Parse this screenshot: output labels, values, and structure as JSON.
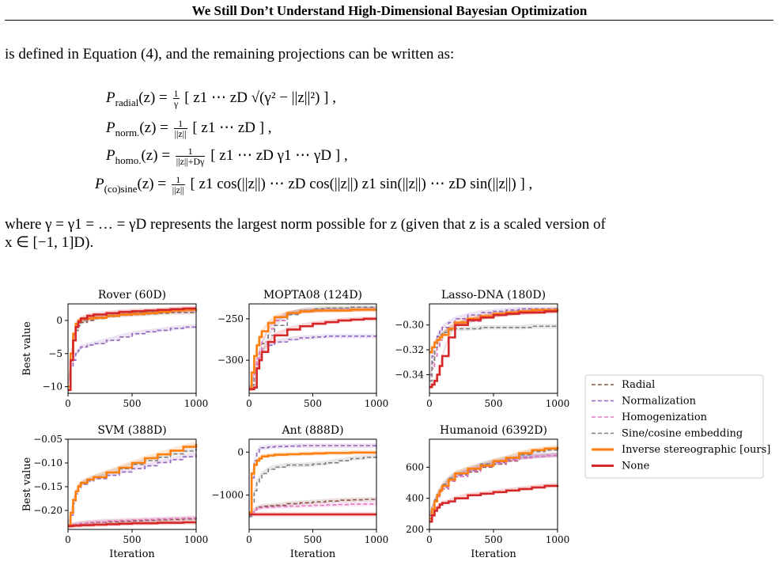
{
  "header": {
    "title": "We Still Don’t Understand High-Dimensional Bayesian Optimization"
  },
  "text": {
    "intro": "is defined in Equation (4), and the remaining projections can be written as:",
    "where_line1": "where γ = γ1 = … = γD represents the largest norm possible for z (given that z is a scaled version of",
    "where_line2": "x ∈ [−1, 1]D)."
  },
  "equations": {
    "radial": {
      "lhs_P": "P",
      "lhs_sub": "radial",
      "lhs_arg": "(z) =",
      "frac_num": "1",
      "frac_den": "γ",
      "body": "[ z1   ⋯   zD   √(γ² − ||z||²) ] ,"
    },
    "norm": {
      "lhs_P": "P",
      "lhs_sub": "norm.",
      "lhs_arg": "(z) =",
      "frac_num": "1",
      "frac_den": "||z||",
      "body": "[ z1   ⋯   zD ] ,"
    },
    "homo": {
      "lhs_P": "P",
      "lhs_sub": "homo.",
      "lhs_arg": "(z) =",
      "frac_num": "1",
      "frac_den": "||z||+Dγ",
      "body": "[ z1   ⋯   zD   γ1   ⋯   γD ] ,"
    },
    "sine": {
      "lhs_P": "P",
      "lhs_sub": "(co)sine",
      "lhs_arg": "(z) =",
      "frac_num": "1",
      "frac_den": "||z||",
      "body": "[ z1 cos(||z||)   ⋯   zD cos(||z||)   z1 sin(||z||)   ⋯   zD sin(||z||) ] ,"
    }
  },
  "legend": {
    "entries": [
      {
        "label": "Radial",
        "color": "#8c564b",
        "dash": true
      },
      {
        "label": "Normalization",
        "color": "#9467bd",
        "dash": true
      },
      {
        "label": "Homogenization",
        "color": "#e377c2",
        "dash": true
      },
      {
        "label": "Sine/cosine embedding",
        "color": "#7f7f7f",
        "dash": true
      },
      {
        "label": "Inverse stereographic [ours]",
        "color": "#ff7f0e",
        "dash": false
      },
      {
        "label": "None",
        "color": "#d62728",
        "dash": false
      }
    ]
  },
  "chart_data": [
    {
      "type": "line",
      "title": "Rover (60D)",
      "ylabel": "Best value",
      "xlabel": "",
      "xlim": [
        0,
        1000
      ],
      "ylim": [
        -11,
        2.5
      ],
      "xticks": [
        0,
        500,
        1000
      ],
      "yticks": [
        0,
        -5,
        -10
      ],
      "x": [
        0,
        20,
        40,
        60,
        80,
        100,
        150,
        200,
        300,
        400,
        500,
        600,
        700,
        800,
        900,
        1000
      ],
      "series": [
        {
          "name": "Radial",
          "values": [
            -10,
            -6,
            -3,
            -1.5,
            -0.8,
            -0.3,
            0,
            0.3,
            0.6,
            0.8,
            0.9,
            1.0,
            1.1,
            1.2,
            1.2,
            1.3
          ]
        },
        {
          "name": "Normalization",
          "values": [
            -10,
            -7,
            -6,
            -5,
            -4.5,
            -4,
            -3.7,
            -3.5,
            -3,
            -2.5,
            -2,
            -1.7,
            -1.5,
            -1.2,
            -1,
            -0.9
          ]
        },
        {
          "name": "Homogenization",
          "values": [
            -10,
            -6,
            -3,
            -1.5,
            -0.5,
            0,
            0.3,
            0.5,
            0.8,
            1.0,
            1.1,
            1.2,
            1.3,
            1.4,
            1.5,
            1.5
          ]
        },
        {
          "name": "Sine/cosine embedding",
          "values": [
            -10,
            -6,
            -3,
            -1.5,
            -0.5,
            0,
            0.3,
            0.5,
            0.8,
            1.0,
            1.2,
            1.3,
            1.4,
            1.5,
            1.6,
            1.6
          ]
        },
        {
          "name": "Inverse stereographic [ours]",
          "values": [
            -10,
            -5,
            -2,
            -0.5,
            0,
            0.2,
            0.3,
            0.4,
            0.7,
            0.9,
            1.0,
            1.1,
            1.3,
            1.5,
            1.6,
            1.7
          ]
        },
        {
          "name": "None",
          "values": [
            -10.5,
            -6,
            -3,
            -1,
            -0.2,
            0.3,
            0.7,
            0.9,
            1.1,
            1.3,
            1.4,
            1.5,
            1.6,
            1.7,
            1.8,
            1.8
          ]
        }
      ]
    },
    {
      "type": "line",
      "title": "MOPTA08 (124D)",
      "ylabel": "",
      "xlabel": "",
      "xlim": [
        0,
        1000
      ],
      "ylim": [
        -340,
        -232
      ],
      "xticks": [
        0,
        500,
        1000
      ],
      "yticks": [
        -250,
        -300
      ],
      "x": [
        0,
        20,
        40,
        60,
        80,
        100,
        150,
        200,
        300,
        400,
        500,
        600,
        700,
        800,
        900,
        1000
      ],
      "series": [
        {
          "name": "Radial",
          "values": [
            -335,
            -330,
            -315,
            -300,
            -290,
            -280,
            -262,
            -252,
            -244,
            -241,
            -240,
            -239,
            -239,
            -239,
            -238,
            -238
          ]
        },
        {
          "name": "Normalization",
          "values": [
            -335,
            -330,
            -315,
            -305,
            -297,
            -290,
            -282,
            -278,
            -275,
            -273,
            -272,
            -271,
            -271,
            -271,
            -271,
            -271
          ]
        },
        {
          "name": "Homogenization",
          "values": [
            -335,
            -330,
            -312,
            -298,
            -288,
            -278,
            -262,
            -252,
            -244,
            -241,
            -240,
            -239,
            -239,
            -239,
            -238,
            -238
          ]
        },
        {
          "name": "Sine/cosine embedding",
          "values": [
            -335,
            -330,
            -320,
            -310,
            -300,
            -290,
            -270,
            -258,
            -245,
            -240,
            -238,
            -237,
            -237,
            -236,
            -236,
            -236
          ]
        },
        {
          "name": "Inverse stereographic [ours]",
          "values": [
            -335,
            -315,
            -295,
            -282,
            -272,
            -265,
            -255,
            -248,
            -243,
            -241,
            -240,
            -240,
            -240,
            -239,
            -239,
            -239
          ]
        },
        {
          "name": "None",
          "values": [
            -335,
            -335,
            -333,
            -310,
            -300,
            -290,
            -278,
            -270,
            -263,
            -259,
            -256,
            -254,
            -252,
            -251,
            -250,
            -250
          ]
        }
      ]
    },
    {
      "type": "line",
      "title": "Lasso-DNA (180D)",
      "ylabel": "",
      "xlabel": "",
      "xlim": [
        0,
        1000
      ],
      "ylim": [
        -0.355,
        -0.283
      ],
      "xticks": [
        0,
        500,
        1000
      ],
      "yticks": [
        -0.3,
        -0.32,
        -0.34
      ],
      "x": [
        0,
        20,
        40,
        60,
        80,
        100,
        150,
        200,
        300,
        400,
        500,
        600,
        700,
        800,
        900,
        1000
      ],
      "series": [
        {
          "name": "Radial",
          "values": [
            -0.345,
            -0.335,
            -0.325,
            -0.318,
            -0.312,
            -0.308,
            -0.303,
            -0.3,
            -0.297,
            -0.294,
            -0.292,
            -0.291,
            -0.29,
            -0.289,
            -0.289,
            -0.288
          ]
        },
        {
          "name": "Normalization",
          "values": [
            -0.34,
            -0.325,
            -0.315,
            -0.309,
            -0.305,
            -0.302,
            -0.298,
            -0.295,
            -0.292,
            -0.29,
            -0.289,
            -0.288,
            -0.287,
            -0.287,
            -0.287,
            -0.287
          ]
        },
        {
          "name": "Homogenization",
          "values": [
            -0.345,
            -0.335,
            -0.325,
            -0.318,
            -0.312,
            -0.308,
            -0.303,
            -0.3,
            -0.297,
            -0.294,
            -0.292,
            -0.291,
            -0.29,
            -0.289,
            -0.289,
            -0.288
          ]
        },
        {
          "name": "Sine/cosine embedding",
          "values": [
            -0.345,
            -0.33,
            -0.318,
            -0.312,
            -0.308,
            -0.306,
            -0.304,
            -0.303,
            -0.303,
            -0.302,
            -0.302,
            -0.302,
            -0.302,
            -0.301,
            -0.301,
            -0.301
          ]
        },
        {
          "name": "Inverse stereographic [ours]",
          "values": [
            -0.322,
            -0.318,
            -0.314,
            -0.312,
            -0.31,
            -0.308,
            -0.303,
            -0.298,
            -0.295,
            -0.293,
            -0.291,
            -0.29,
            -0.289,
            -0.288,
            -0.288,
            -0.287
          ]
        },
        {
          "name": "None",
          "values": [
            -0.35,
            -0.348,
            -0.345,
            -0.34,
            -0.333,
            -0.325,
            -0.31,
            -0.3,
            -0.296,
            -0.294,
            -0.292,
            -0.291,
            -0.29,
            -0.29,
            -0.289,
            -0.289
          ]
        }
      ]
    },
    {
      "type": "line",
      "title": "SVM (388D)",
      "ylabel": "Best value",
      "xlabel": "Iteration",
      "xlim": [
        0,
        1000
      ],
      "ylim": [
        -0.24,
        -0.05
      ],
      "xticks": [
        0,
        500,
        1000
      ],
      "yticks": [
        -0.05,
        -0.1,
        -0.15,
        -0.2
      ],
      "x": [
        0,
        20,
        40,
        60,
        80,
        100,
        150,
        200,
        300,
        400,
        500,
        600,
        700,
        800,
        900,
        1000
      ],
      "series": [
        {
          "name": "Radial",
          "values": [
            -0.232,
            -0.231,
            -0.23,
            -0.229,
            -0.228,
            -0.227,
            -0.226,
            -0.225,
            -0.224,
            -0.223,
            -0.222,
            -0.221,
            -0.22,
            -0.219,
            -0.218,
            -0.217
          ]
        },
        {
          "name": "Normalization",
          "values": [
            -0.232,
            -0.21,
            -0.185,
            -0.165,
            -0.152,
            -0.145,
            -0.138,
            -0.133,
            -0.126,
            -0.119,
            -0.112,
            -0.106,
            -0.099,
            -0.093,
            -0.087,
            -0.081
          ]
        },
        {
          "name": "Homogenization",
          "values": [
            -0.232,
            -0.231,
            -0.23,
            -0.229,
            -0.228,
            -0.227,
            -0.225,
            -0.224,
            -0.222,
            -0.221,
            -0.22,
            -0.219,
            -0.218,
            -0.217,
            -0.216,
            -0.215
          ]
        },
        {
          "name": "Sine/cosine embedding",
          "values": [
            -0.232,
            -0.205,
            -0.18,
            -0.162,
            -0.15,
            -0.143,
            -0.136,
            -0.13,
            -0.121,
            -0.112,
            -0.103,
            -0.095,
            -0.088,
            -0.081,
            -0.075,
            -0.07
          ]
        },
        {
          "name": "Inverse stereographic [ours]",
          "values": [
            -0.232,
            -0.205,
            -0.178,
            -0.16,
            -0.149,
            -0.142,
            -0.135,
            -0.13,
            -0.12,
            -0.11,
            -0.1,
            -0.09,
            -0.082,
            -0.074,
            -0.066,
            -0.06
          ]
        },
        {
          "name": "None",
          "values": [
            -0.233,
            -0.233,
            -0.232,
            -0.232,
            -0.232,
            -0.231,
            -0.231,
            -0.23,
            -0.229,
            -0.228,
            -0.227,
            -0.227,
            -0.226,
            -0.226,
            -0.225,
            -0.225
          ]
        }
      ]
    },
    {
      "type": "line",
      "title": "Ant (888D)",
      "ylabel": "",
      "xlabel": "Iteration",
      "xlim": [
        0,
        1000
      ],
      "ylim": [
        -1800,
        300
      ],
      "xticks": [
        0,
        500,
        1000
      ],
      "yticks": [
        0,
        -1000
      ],
      "x": [
        0,
        20,
        40,
        60,
        80,
        100,
        150,
        200,
        300,
        400,
        500,
        600,
        700,
        800,
        900,
        1000
      ],
      "series": [
        {
          "name": "Radial",
          "values": [
            -1500,
            -1400,
            -1350,
            -1300,
            -1280,
            -1260,
            -1250,
            -1240,
            -1200,
            -1180,
            -1160,
            -1140,
            -1120,
            -1110,
            -1100,
            -1100
          ]
        },
        {
          "name": "Normalization",
          "values": [
            -1400,
            -600,
            -200,
            0,
            100,
            100,
            120,
            130,
            140,
            150,
            150,
            150,
            150,
            150,
            150,
            150
          ]
        },
        {
          "name": "Homogenization",
          "values": [
            -1500,
            -1400,
            -1350,
            -1320,
            -1300,
            -1290,
            -1280,
            -1270,
            -1260,
            -1250,
            -1240,
            -1230,
            -1220,
            -1210,
            -1210,
            -1200
          ]
        },
        {
          "name": "Sine/cosine embedding",
          "values": [
            -1500,
            -1200,
            -900,
            -700,
            -600,
            -500,
            -400,
            -350,
            -300,
            -300,
            -280,
            -250,
            -200,
            -150,
            -120,
            -100
          ]
        },
        {
          "name": "Inverse stereographic [ours]",
          "values": [
            -1400,
            -500,
            -300,
            -200,
            -150,
            -100,
            -80,
            -60,
            -50,
            -40,
            -30,
            -20,
            -20,
            -10,
            -10,
            -10
          ]
        },
        {
          "name": "None",
          "values": [
            -1450,
            -1450,
            -1450,
            -1450,
            -1450,
            -1450,
            -1450,
            -1450,
            -1450,
            -1450,
            -1450,
            -1450,
            -1450,
            -1450,
            -1450,
            -1450
          ]
        }
      ]
    },
    {
      "type": "line",
      "title": "Humanoid (6392D)",
      "ylabel": "",
      "xlabel": "Iteration",
      "xlim": [
        0,
        1000
      ],
      "ylim": [
        200,
        780
      ],
      "xticks": [
        0,
        500,
        1000
      ],
      "yticks": [
        200,
        400,
        600
      ],
      "x": [
        0,
        20,
        40,
        60,
        80,
        100,
        150,
        200,
        300,
        400,
        500,
        600,
        700,
        800,
        900,
        1000
      ],
      "series": [
        {
          "name": "Radial",
          "values": [
            290,
            340,
            380,
            410,
            440,
            460,
            510,
            540,
            570,
            600,
            620,
            640,
            660,
            670,
            675,
            680
          ]
        },
        {
          "name": "Normalization",
          "values": [
            290,
            340,
            380,
            420,
            450,
            470,
            520,
            550,
            580,
            610,
            630,
            650,
            665,
            670,
            675,
            680
          ]
        },
        {
          "name": "Homogenization",
          "values": [
            290,
            340,
            380,
            410,
            440,
            460,
            510,
            540,
            575,
            605,
            625,
            645,
            660,
            670,
            675,
            680
          ]
        },
        {
          "name": "Sine/cosine embedding",
          "values": [
            290,
            340,
            390,
            430,
            460,
            490,
            530,
            560,
            590,
            620,
            640,
            660,
            680,
            700,
            710,
            720
          ]
        },
        {
          "name": "Inverse stereographic [ours]",
          "values": [
            270,
            330,
            380,
            420,
            450,
            480,
            520,
            560,
            590,
            610,
            640,
            660,
            690,
            710,
            720,
            730
          ]
        },
        {
          "name": "None",
          "values": [
            250,
            290,
            320,
            340,
            360,
            370,
            380,
            400,
            420,
            430,
            440,
            450,
            460,
            470,
            480,
            485
          ]
        }
      ]
    }
  ]
}
